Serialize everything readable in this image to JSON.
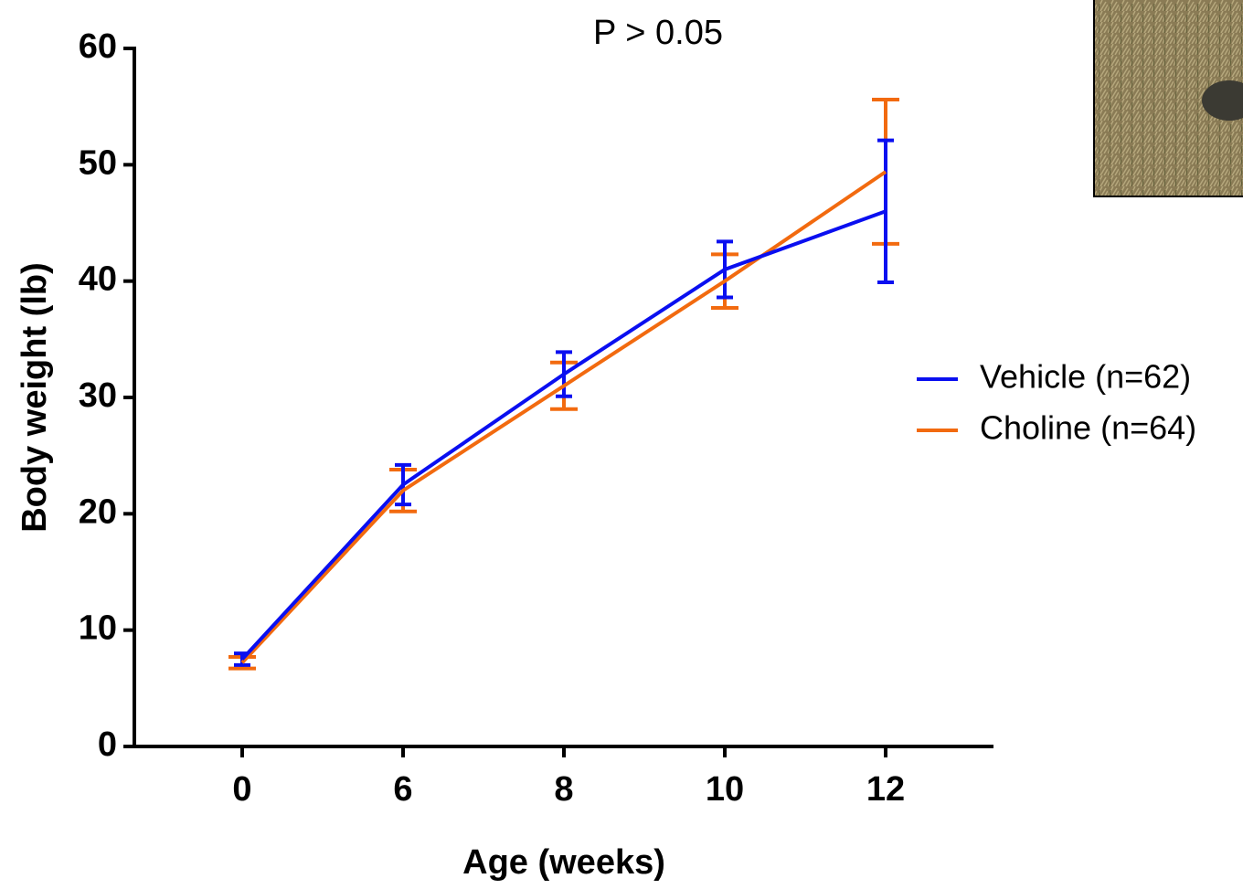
{
  "chart_data": {
    "type": "line",
    "title": "P > 0.05",
    "x_label": "Age (weeks)",
    "y_label": "Body weight (lb)",
    "categories": [
      "0",
      "6",
      "8",
      "10",
      "12"
    ],
    "series": [
      {
        "name": "Vehicle (n=62)",
        "color": "#0a0ff0",
        "values": [
          7.5,
          22.5,
          32,
          41,
          46
        ],
        "errors": [
          0.5,
          1.7,
          1.9,
          2.4,
          6.1
        ]
      },
      {
        "name": "Choline (n=64)",
        "color": "#f26a0f",
        "values": [
          7.2,
          22,
          31,
          40,
          49.4
        ],
        "errors": [
          0.5,
          1.8,
          2,
          2.3,
          6.2
        ]
      }
    ],
    "ylim": [
      0,
      60
    ],
    "yticks": [
      0,
      10,
      20,
      30,
      40,
      50,
      60
    ],
    "grid": false,
    "legend": "right"
  }
}
